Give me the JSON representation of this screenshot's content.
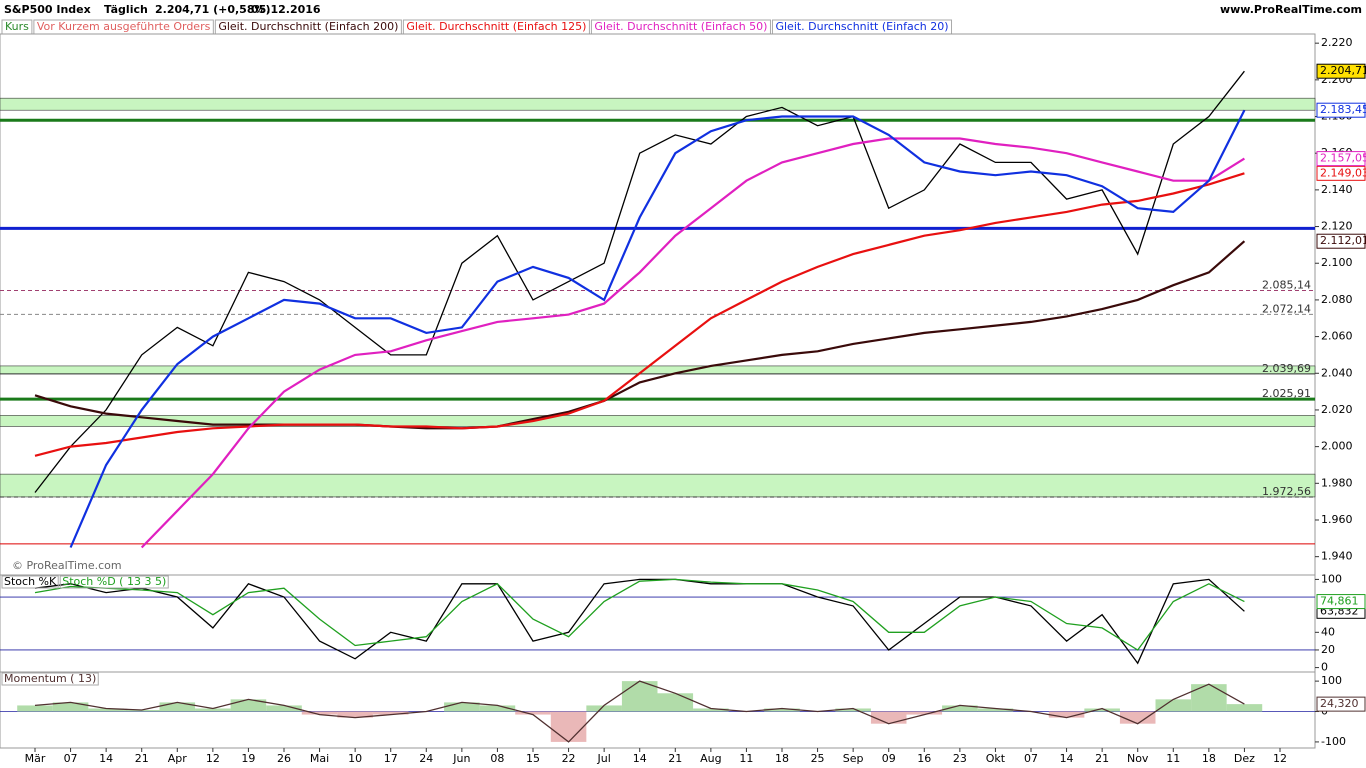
{
  "header": {
    "title": "S&P500 Index",
    "period": "Täglich",
    "quote": "2.204,71 (+0,58%)",
    "date": "05.12.2016",
    "site": "www.ProRealTime.com",
    "watermark": "© ProRealTime.com",
    "orders": "Vor Kurzem ausgeführte Orders"
  },
  "chart_data": [
    {
      "type": "line",
      "categories": [
        "Mär",
        "07",
        "14",
        "21",
        "Apr",
        "12",
        "19",
        "26",
        "Mai",
        "10",
        "17",
        "24",
        "Jun",
        "08",
        "15",
        "22",
        "Jul",
        "14",
        "21",
        "Aug",
        "11",
        "18",
        "25",
        "Sep",
        "09",
        "16",
        "23",
        "Okt",
        "07",
        "14",
        "21",
        "Nov",
        "11",
        "18",
        "Dez",
        "12"
      ],
      "ylim": [
        1930,
        2225
      ],
      "yticks": [
        {
          "value": 2220,
          "label": "2.220"
        },
        {
          "value": 2200,
          "label": "2.200"
        },
        {
          "value": 2180,
          "label": "2.180"
        },
        {
          "value": 2160,
          "label": "2.160"
        },
        {
          "value": 2140,
          "label": "2.140"
        },
        {
          "value": 2120,
          "label": "2.120"
        },
        {
          "value": 2100,
          "label": "2.100"
        },
        {
          "value": 2080,
          "label": "2.080"
        },
        {
          "value": 2060,
          "label": "2.060"
        },
        {
          "value": 2040,
          "label": "2.040"
        },
        {
          "value": 2020,
          "label": "2.020"
        },
        {
          "value": 2000,
          "label": "2.000"
        },
        {
          "value": 1980,
          "label": "1.980"
        },
        {
          "value": 1960,
          "label": "1.960"
        },
        {
          "value": 1940,
          "label": "1.940"
        }
      ],
      "zones": [
        [
          2039.69,
          2044
        ],
        [
          2011,
          2017
        ],
        [
          1972.56,
          1985
        ],
        [
          2183.45,
          2190
        ]
      ],
      "zone_color": "#c8f5c0",
      "levels": [
        {
          "value": 2085.14,
          "label": "2.085,14",
          "color": "#a04070",
          "style": "dashed"
        },
        {
          "value": 2072.14,
          "label": "2.072,14",
          "color": "#888888",
          "style": "dashed"
        },
        {
          "value": 2039.69,
          "label": "2.039,69",
          "color": "#333333",
          "style": "solid"
        },
        {
          "value": 2025.91,
          "label": "2.025,91",
          "color": "#1a7a1a",
          "style": "thick"
        },
        {
          "value": 1972.56,
          "label": "1.972,56",
          "color": "#333333",
          "style": "dashed"
        },
        {
          "value": 2119,
          "color": "#1020d0",
          "style": "thick"
        },
        {
          "value": 2178,
          "color": "#1a7a1a",
          "style": "thick"
        },
        {
          "value": 1947,
          "color": "#dd0000",
          "style": "solid"
        }
      ],
      "series": [
        {
          "name": "Kurs",
          "color": "#000000",
          "legend_color": "#2a8a2a",
          "values": [
            1975,
            2000,
            2020,
            2050,
            2065,
            2055,
            2095,
            2090,
            2080,
            2065,
            2050,
            2050,
            2100,
            2115,
            2080,
            2090,
            2100,
            2160,
            2170,
            2165,
            2180,
            2185,
            2175,
            2180,
            2130,
            2140,
            2165,
            2155,
            2155,
            2135,
            2140,
            2105,
            2165,
            2180,
            2204.71,
            null
          ],
          "last_label": "2.204,71",
          "label_bg": "#ffe000"
        },
        {
          "name": "Gleit. Durchschnitt (Einfach 200)",
          "color": "#3a0a0a",
          "values": [
            2028,
            2022,
            2018,
            2016,
            2014,
            2012,
            2012,
            2012,
            2012,
            2012,
            2011,
            2010,
            2010,
            2011,
            2015,
            2019,
            2025,
            2035,
            2040,
            2044,
            2047,
            2050,
            2052,
            2056,
            2059,
            2062,
            2064,
            2066,
            2068,
            2071,
            2075,
            2080,
            2088,
            2095,
            2112.01,
            null
          ],
          "last_label": "2.112,01",
          "label_bg": "#ffffff"
        },
        {
          "name": "Gleit. Durchschnitt (Einfach 125)",
          "color": "#e81010",
          "values": [
            1995,
            2000,
            2002,
            2005,
            2008,
            2010,
            2011,
            2012,
            2012,
            2012,
            2011,
            2011,
            2010,
            2011,
            2014,
            2018,
            2025,
            2040,
            2055,
            2070,
            2080,
            2090,
            2098,
            2105,
            2110,
            2115,
            2118,
            2122,
            2125,
            2128,
            2132,
            2134,
            2138,
            2143,
            2149.03,
            null
          ],
          "last_label": "2.149,03",
          "label_bg": "#ffffff"
        },
        {
          "name": "Gleit. Durchschnitt (Einfach 50)",
          "color": "#e020c0",
          "values": [
            null,
            null,
            null,
            1945,
            1965,
            1985,
            2010,
            2030,
            2042,
            2050,
            2052,
            2058,
            2063,
            2068,
            2070,
            2072,
            2078,
            2095,
            2115,
            2130,
            2145,
            2155,
            2160,
            2165,
            2168,
            2168,
            2168,
            2165,
            2163,
            2160,
            2155,
            2150,
            2145,
            2145,
            2157.05,
            null
          ],
          "last_label": "2.157,05",
          "label_bg": "#ffffff"
        },
        {
          "name": "Gleit. Durchschnitt (Einfach 20)",
          "color": "#1030e0",
          "values": [
            null,
            1945,
            1990,
            2020,
            2045,
            2060,
            2070,
            2080,
            2078,
            2070,
            2070,
            2062,
            2065,
            2090,
            2098,
            2092,
            2080,
            2125,
            2160,
            2172,
            2178,
            2180,
            2180,
            2180,
            2170,
            2155,
            2150,
            2148,
            2150,
            2148,
            2142,
            2130,
            2128,
            2145,
            2183.45,
            null
          ],
          "last_label": "2.183,45",
          "label_bg": "#ffffff"
        }
      ]
    },
    {
      "type": "line",
      "ylim": [
        -5,
        105
      ],
      "yticks": [
        100,
        40,
        20,
        0
      ],
      "hlines": [
        80,
        20
      ],
      "hline_color": "#2020a0",
      "series": [
        {
          "name": "Stoch %K",
          "color": "#000000",
          "values": [
            90,
            95,
            85,
            90,
            80,
            45,
            95,
            80,
            30,
            10,
            40,
            30,
            95,
            95,
            30,
            40,
            95,
            100,
            100,
            95,
            95,
            95,
            80,
            70,
            20,
            50,
            80,
            80,
            70,
            30,
            60,
            5,
            95,
            100,
            63.832,
            null
          ],
          "last_label": "63,832"
        },
        {
          "name": "Stoch %D ( 13 3 5)",
          "color": "#20a020",
          "values": [
            85,
            92,
            90,
            88,
            85,
            60,
            85,
            90,
            55,
            25,
            30,
            35,
            75,
            95,
            55,
            35,
            75,
            98,
            100,
            97,
            95,
            95,
            88,
            75,
            40,
            40,
            70,
            80,
            75,
            50,
            45,
            20,
            75,
            95,
            74.861,
            null
          ],
          "last_label": "74,861"
        }
      ]
    },
    {
      "type": "area",
      "ylim": [
        -120,
        130
      ],
      "yticks": [
        100,
        0,
        -100
      ],
      "hlines": [
        0
      ],
      "hline_color": "#2020a0",
      "series": [
        {
          "name": "Momentum ( 13)",
          "color": "#503030",
          "pos_fill": "#a8d8a0",
          "neg_fill": "#e8b0b0",
          "values": [
            20,
            30,
            10,
            5,
            30,
            10,
            40,
            20,
            -10,
            -20,
            -10,
            0,
            30,
            20,
            -10,
            -100,
            20,
            100,
            60,
            10,
            0,
            10,
            0,
            10,
            -40,
            -10,
            20,
            10,
            0,
            -20,
            10,
            -40,
            40,
            90,
            24.32,
            null
          ],
          "last_label": "24,320"
        }
      ]
    }
  ]
}
